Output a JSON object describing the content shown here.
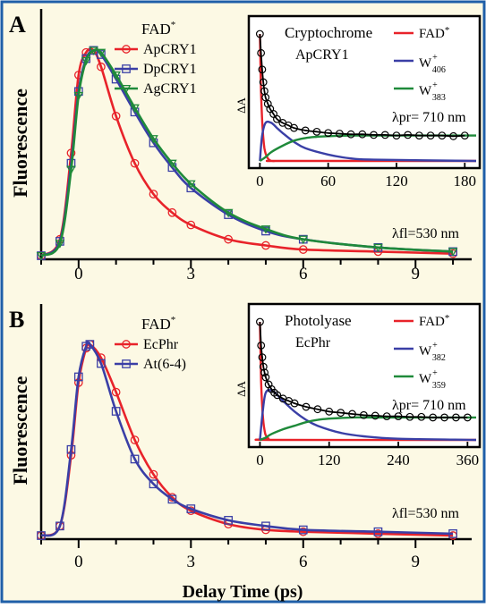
{
  "colors": {
    "frame": "#1f5fa8",
    "panel_bg": "#fcf9e4",
    "inset_bg": "#ffffff",
    "red": "#e8232a",
    "blue": "#3a3fa6",
    "green": "#1f8a3a",
    "black": "#000000"
  },
  "xlabel": "Delay Time (ps)",
  "chart_data": [
    {
      "type": "line",
      "panel_label": "A",
      "ylabel": "Fluorescence",
      "xlim": [
        -1,
        10.5
      ],
      "ylim": [
        0,
        1.08
      ],
      "x_ticks": [
        "0",
        "3",
        "6",
        "9"
      ],
      "legend_title": "FAD*",
      "legend_location": "center-left",
      "annotation": "λfl=530 nm",
      "grid": false,
      "series": [
        {
          "name": "ApCRY1",
          "marker": "circle",
          "color": "#e8232a",
          "x": [
            -1.0,
            -0.5,
            -0.2,
            0.0,
            0.2,
            0.4,
            0.6,
            1.0,
            1.5,
            2.0,
            2.5,
            3.0,
            4.0,
            5.0,
            6.0,
            8.0,
            10.0
          ],
          "y": [
            0.0,
            0.08,
            0.5,
            0.88,
            0.99,
            1.0,
            0.92,
            0.68,
            0.45,
            0.3,
            0.21,
            0.15,
            0.08,
            0.05,
            0.03,
            0.02,
            0.01
          ]
        },
        {
          "name": "DpCRY1",
          "marker": "square",
          "color": "#3a3fa6",
          "x": [
            -1.0,
            -0.5,
            -0.2,
            0.0,
            0.2,
            0.4,
            0.6,
            1.0,
            1.5,
            2.0,
            2.5,
            3.0,
            4.0,
            5.0,
            6.0,
            8.0,
            10.0
          ],
          "y": [
            0.0,
            0.07,
            0.45,
            0.8,
            0.96,
            1.0,
            0.98,
            0.86,
            0.7,
            0.55,
            0.43,
            0.33,
            0.2,
            0.12,
            0.08,
            0.04,
            0.02
          ]
        },
        {
          "name": "AgCRY1",
          "marker": "triangle-down",
          "color": "#1f8a3a",
          "x": [
            -1.0,
            -0.5,
            -0.2,
            0.0,
            0.2,
            0.4,
            0.6,
            1.0,
            1.5,
            2.0,
            2.5,
            3.0,
            4.0,
            5.0,
            6.0,
            8.0,
            10.0
          ],
          "y": [
            0.0,
            0.06,
            0.42,
            0.78,
            0.95,
            1.0,
            0.99,
            0.88,
            0.72,
            0.57,
            0.45,
            0.35,
            0.21,
            0.13,
            0.08,
            0.04,
            0.02
          ]
        }
      ],
      "inset": {
        "title": "Cryptochrome",
        "subtitle": "ApCRY1",
        "ylabel": "ΔA",
        "xlim": [
          -5,
          190
        ],
        "x_ticks": [
          "0",
          "60",
          "120",
          "180"
        ],
        "annotation": "λpr= 710 nm",
        "data_series_marker": "circle",
        "data": {
          "x": [
            0,
            1,
            2,
            3,
            4,
            5,
            7,
            9,
            12,
            15,
            20,
            25,
            30,
            40,
            50,
            60,
            70,
            80,
            90,
            100,
            110,
            120,
            130,
            140,
            150,
            160,
            170,
            180
          ],
          "y": [
            1.0,
            0.85,
            0.72,
            0.62,
            0.55,
            0.5,
            0.45,
            0.41,
            0.37,
            0.33,
            0.3,
            0.28,
            0.26,
            0.24,
            0.23,
            0.22,
            0.215,
            0.21,
            0.21,
            0.205,
            0.205,
            0.2,
            0.205,
            0.2,
            0.2,
            0.2,
            0.195,
            0.2
          ]
        },
        "series": [
          {
            "name": "FAD*",
            "color": "#e8232a",
            "x": [
              0,
              1,
              2,
              3,
              4,
              5,
              7,
              10,
              15,
              20,
              190
            ],
            "y": [
              1.0,
              0.55,
              0.32,
              0.18,
              0.1,
              0.06,
              0.02,
              0.0,
              0.0,
              0.0,
              0.0
            ]
          },
          {
            "name": "W406+",
            "label_main": "W",
            "label_sup": "+",
            "label_sub": "406",
            "color": "#3a3fa6",
            "x": [
              0,
              2,
              5,
              10,
              15,
              20,
              30,
              40,
              60,
              80,
              100,
              190
            ],
            "y": [
              0.0,
              0.2,
              0.3,
              0.3,
              0.26,
              0.22,
              0.15,
              0.1,
              0.05,
              0.02,
              0.01,
              0.0
            ]
          },
          {
            "name": "W383+",
            "label_main": "W",
            "label_sup": "+",
            "label_sub": "383",
            "color": "#1f8a3a",
            "x": [
              0,
              5,
              10,
              20,
              30,
              40,
              50,
              60,
              80,
              100,
              190
            ],
            "y": [
              0.0,
              0.03,
              0.07,
              0.12,
              0.16,
              0.18,
              0.19,
              0.195,
              0.2,
              0.2,
              0.2
            ]
          }
        ]
      }
    },
    {
      "type": "line",
      "panel_label": "B",
      "ylabel": "Fluorescence",
      "xlim": [
        -1,
        10.5
      ],
      "ylim": [
        0,
        1.08
      ],
      "x_ticks": [
        "0",
        "3",
        "6",
        "9"
      ],
      "legend_title": "FAD*",
      "legend_location": "center-left",
      "annotation": "λfl=530 nm",
      "grid": false,
      "series": [
        {
          "name": "EcPhr",
          "marker": "circle",
          "color": "#e8232a",
          "x": [
            -1.0,
            -0.5,
            -0.2,
            0.0,
            0.2,
            0.3,
            0.6,
            1.0,
            1.5,
            2.0,
            2.5,
            3.0,
            4.0,
            5.0,
            6.0,
            8.0,
            10.0
          ],
          "y": [
            0.0,
            0.05,
            0.42,
            0.8,
            0.98,
            1.0,
            0.93,
            0.75,
            0.5,
            0.32,
            0.2,
            0.13,
            0.06,
            0.03,
            0.02,
            0.01,
            0.0
          ]
        },
        {
          "name": "At(6-4)",
          "marker": "square",
          "color": "#3a3fa6",
          "x": [
            -1.0,
            -0.5,
            -0.2,
            0.0,
            0.2,
            0.3,
            0.6,
            1.0,
            1.5,
            2.0,
            2.5,
            3.0,
            4.0,
            5.0,
            6.0,
            8.0,
            10.0
          ],
          "y": [
            0.0,
            0.05,
            0.45,
            0.83,
            0.99,
            1.0,
            0.9,
            0.65,
            0.4,
            0.27,
            0.19,
            0.14,
            0.08,
            0.05,
            0.03,
            0.02,
            0.01
          ]
        }
      ],
      "inset": {
        "title": "Photolyase",
        "subtitle": "EcPhr",
        "ylabel": "ΔA",
        "xlim": [
          -10,
          375
        ],
        "x_ticks": [
          "0",
          "120",
          "240",
          "360"
        ],
        "annotation": "λpr= 710 nm",
        "data_series_marker": "circle",
        "data": {
          "x": [
            0,
            2,
            4,
            6,
            8,
            10,
            15,
            20,
            25,
            30,
            40,
            50,
            60,
            80,
            100,
            120,
            140,
            160,
            180,
            200,
            220,
            240,
            260,
            280,
            300,
            320,
            340,
            360
          ],
          "y": [
            1.0,
            0.8,
            0.7,
            0.62,
            0.57,
            0.53,
            0.47,
            0.43,
            0.4,
            0.38,
            0.35,
            0.33,
            0.31,
            0.28,
            0.26,
            0.24,
            0.23,
            0.22,
            0.21,
            0.205,
            0.2,
            0.2,
            0.195,
            0.195,
            0.19,
            0.19,
            0.19,
            0.19
          ]
        },
        "series": [
          {
            "name": "FAD*",
            "color": "#e8232a",
            "x": [
              0,
              2,
              4,
              6,
              8,
              10,
              15,
              20,
              375
            ],
            "y": [
              1.0,
              0.5,
              0.28,
              0.15,
              0.08,
              0.04,
              0.01,
              0.0,
              0.0
            ]
          },
          {
            "name": "W382+",
            "label_main": "W",
            "label_sup": "+",
            "label_sub": "382",
            "color": "#3a3fa6",
            "x": [
              0,
              5,
              10,
              20,
              30,
              40,
              60,
              80,
              100,
              140,
              180,
              240,
              375
            ],
            "y": [
              0.0,
              0.25,
              0.4,
              0.42,
              0.38,
              0.33,
              0.24,
              0.17,
              0.12,
              0.06,
              0.03,
              0.01,
              0.0
            ]
          },
          {
            "name": "W359+",
            "label_main": "W",
            "label_sup": "+",
            "label_sub": "359",
            "color": "#1f8a3a",
            "x": [
              0,
              10,
              20,
              40,
              60,
              80,
              100,
              120,
              160,
              200,
              375
            ],
            "y": [
              0.0,
              0.02,
              0.05,
              0.09,
              0.12,
              0.15,
              0.17,
              0.18,
              0.19,
              0.19,
              0.19
            ]
          }
        ]
      }
    }
  ]
}
